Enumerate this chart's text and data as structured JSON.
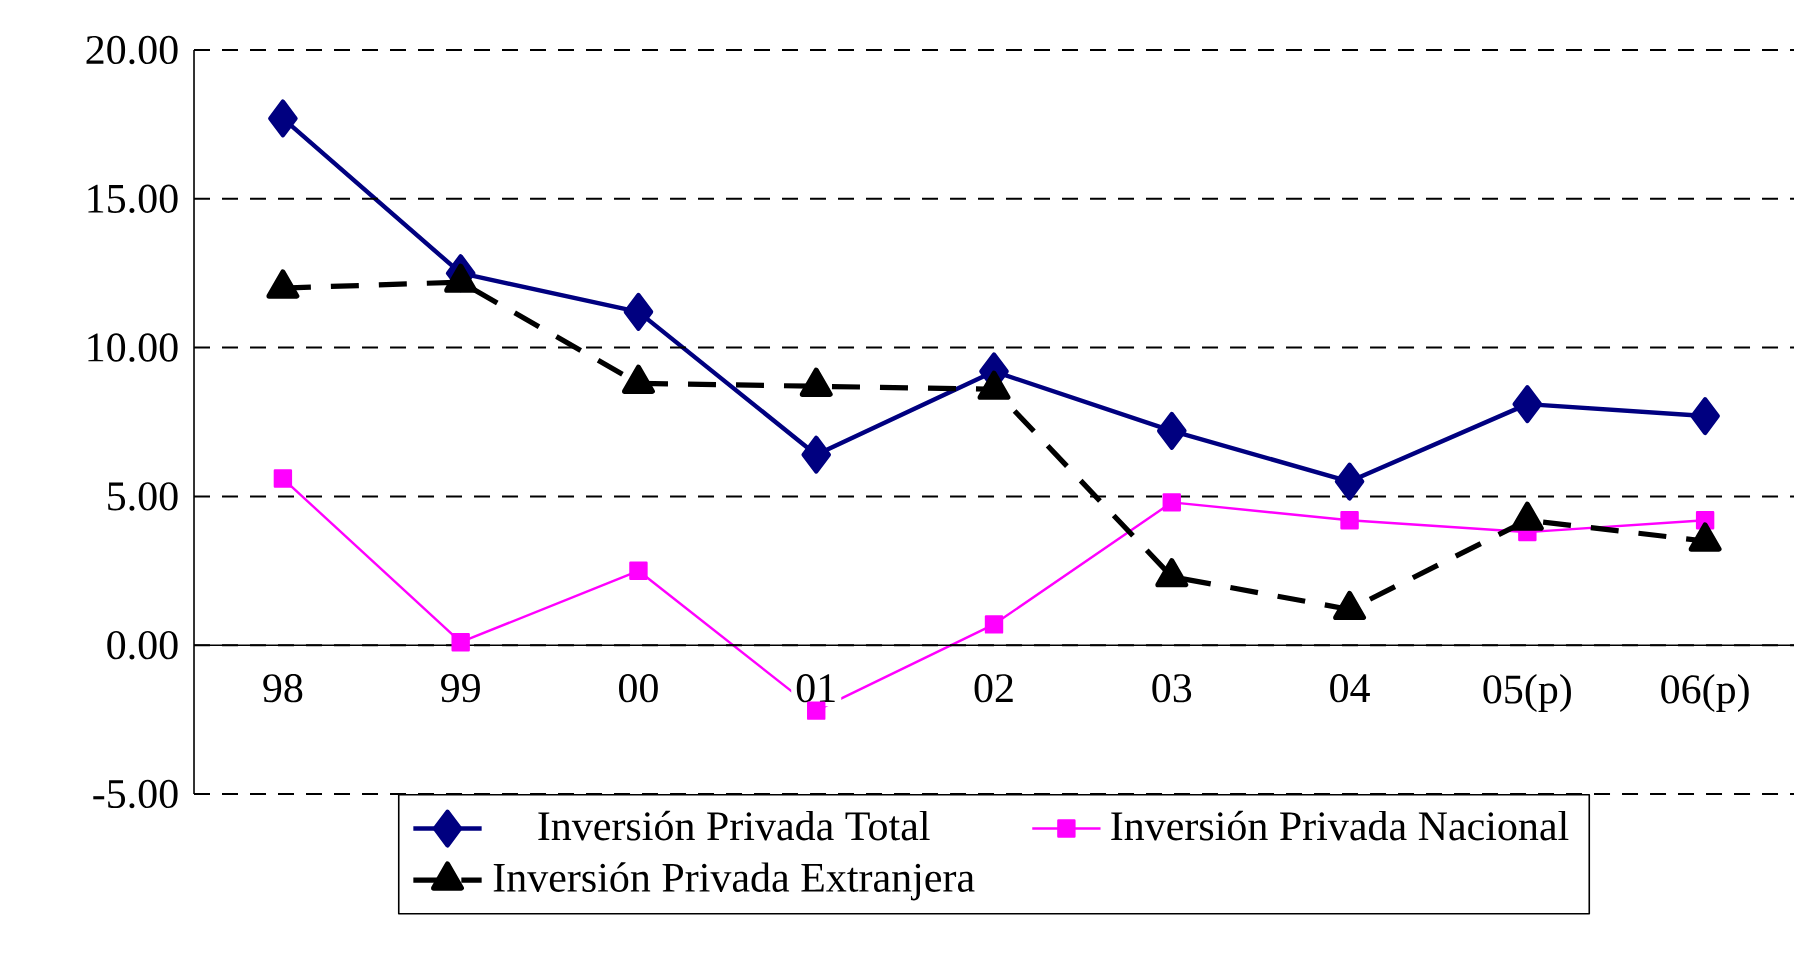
{
  "chart_data": {
    "type": "line",
    "categories": [
      "98",
      "99",
      "00",
      "01",
      "02",
      "03",
      "04",
      "05(p)",
      "06(p)"
    ],
    "series": [
      {
        "name": "Inversión Privada Total",
        "color": "#000080",
        "marker": "diamond",
        "line_style": "solid",
        "values": [
          17.7,
          12.5,
          11.2,
          6.4,
          9.2,
          7.2,
          5.5,
          8.1,
          7.7
        ]
      },
      {
        "name": "Inversión Privada Nacional",
        "color": "#ff00ff",
        "marker": "square",
        "line_style": "solid",
        "values": [
          5.6,
          0.1,
          2.5,
          -2.2,
          0.7,
          4.8,
          4.2,
          3.8,
          4.2
        ]
      },
      {
        "name": "Inversión Privada Extranjera",
        "color": "#000000",
        "marker": "triangle",
        "line_style": "dashed",
        "values": [
          12.0,
          12.2,
          8.8,
          8.7,
          8.6,
          2.3,
          1.2,
          4.2,
          3.5
        ]
      }
    ],
    "ylim": [
      -5,
      20
    ],
    "yticks": [
      {
        "value": -5,
        "label": "-5.00"
      },
      {
        "value": 0,
        "label": "0.00"
      },
      {
        "value": 5,
        "label": "5.00"
      },
      {
        "value": 10,
        "label": "10.00"
      },
      {
        "value": 15,
        "label": "15.00"
      },
      {
        "value": 20,
        "label": "20.00"
      }
    ],
    "grid": "y",
    "legend": "bottom"
  }
}
